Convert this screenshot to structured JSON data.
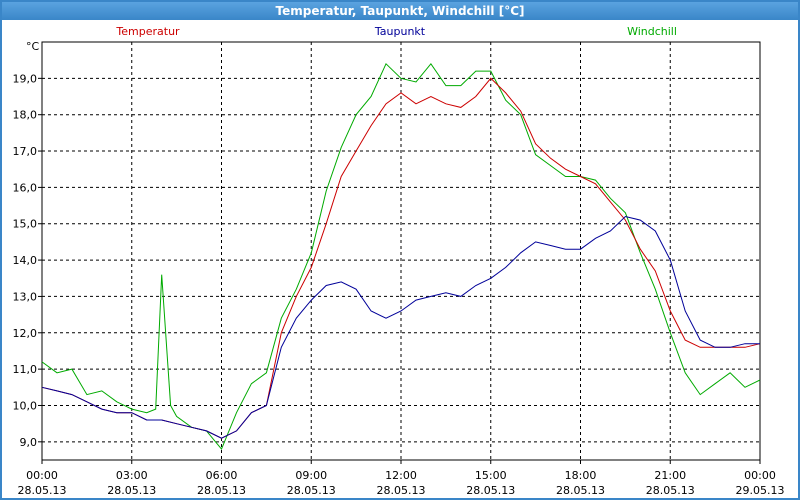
{
  "window": {
    "title": "Temperatur, Taupunkt, Windchill [°C]"
  },
  "chart_data": {
    "type": "line",
    "unit_label": "°C",
    "ylim": [
      8.5,
      20.0
    ],
    "yticks": [
      9.0,
      10.0,
      11.0,
      12.0,
      13.0,
      14.0,
      15.0,
      16.0,
      17.0,
      18.0,
      19.0
    ],
    "ytick_labels": [
      "9,0",
      "10,0",
      "11,0",
      "12,0",
      "13,0",
      "14,0",
      "15,0",
      "16,0",
      "17,0",
      "18,0",
      "19,0"
    ],
    "xlim": [
      0,
      24
    ],
    "xticks": [
      0,
      3,
      6,
      9,
      12,
      15,
      18,
      21,
      24
    ],
    "xtick_time": [
      "00:00",
      "03:00",
      "06:00",
      "09:00",
      "12:00",
      "15:00",
      "18:00",
      "21:00",
      "00:00"
    ],
    "xtick_date": [
      "28.05.13",
      "28.05.13",
      "28.05.13",
      "28.05.13",
      "28.05.13",
      "28.05.13",
      "28.05.13",
      "28.05.13",
      "29.05.13"
    ],
    "grid": true,
    "legend_placement": "top",
    "series": [
      {
        "name": "Temperatur",
        "color": "#cc0000",
        "x": [
          0,
          0.5,
          1,
          1.5,
          2,
          2.5,
          3,
          3.5,
          4,
          4.5,
          5,
          5.5,
          6,
          6.5,
          7,
          7.5,
          8,
          8.5,
          9,
          9.5,
          10,
          10.5,
          11,
          11.5,
          12,
          12.5,
          13,
          13.5,
          14,
          14.5,
          15,
          15.5,
          16,
          16.5,
          17,
          17.5,
          18,
          18.5,
          19,
          19.5,
          20,
          20.5,
          21,
          21.5,
          22,
          22.5,
          23,
          23.5,
          24
        ],
        "values": [
          10.5,
          10.4,
          10.3,
          10.1,
          9.9,
          9.8,
          9.8,
          9.6,
          9.6,
          9.5,
          9.4,
          9.3,
          9.1,
          9.3,
          9.8,
          10.0,
          12.0,
          13.0,
          13.8,
          15.0,
          16.3,
          17.0,
          17.7,
          18.3,
          18.6,
          18.3,
          18.5,
          18.3,
          18.2,
          18.5,
          19.0,
          18.6,
          18.1,
          17.2,
          16.8,
          16.5,
          16.3,
          16.1,
          15.6,
          15.1,
          14.3,
          13.7,
          12.6,
          11.8,
          11.6,
          11.6,
          11.6,
          11.6,
          11.7
        ]
      },
      {
        "name": "Taupunkt",
        "color": "#000099",
        "x": [
          0,
          0.5,
          1,
          1.5,
          2,
          2.5,
          3,
          3.5,
          4,
          4.5,
          5,
          5.5,
          6,
          6.5,
          7,
          7.5,
          8,
          8.5,
          9,
          9.5,
          10,
          10.5,
          11,
          11.5,
          12,
          12.5,
          13,
          13.5,
          14,
          14.5,
          15,
          15.5,
          16,
          16.5,
          17,
          17.5,
          18,
          18.5,
          19,
          19.5,
          20,
          20.5,
          21,
          21.5,
          22,
          22.5,
          23,
          23.5,
          24
        ],
        "values": [
          10.5,
          10.4,
          10.3,
          10.1,
          9.9,
          9.8,
          9.8,
          9.6,
          9.6,
          9.5,
          9.4,
          9.3,
          9.1,
          9.3,
          9.8,
          10.0,
          11.6,
          12.4,
          12.9,
          13.3,
          13.4,
          13.2,
          12.6,
          12.4,
          12.6,
          12.9,
          13.0,
          13.1,
          13.0,
          13.3,
          13.5,
          13.8,
          14.2,
          14.5,
          14.4,
          14.3,
          14.3,
          14.6,
          14.8,
          15.2,
          15.1,
          14.8,
          14.0,
          12.6,
          11.8,
          11.6,
          11.6,
          11.7,
          11.7
        ]
      },
      {
        "name": "Windchill",
        "color": "#00aa00",
        "x": [
          0,
          0.5,
          1,
          1.5,
          2,
          2.5,
          3,
          3.5,
          3.8,
          4,
          4.3,
          4.5,
          5,
          5.5,
          6,
          6.5,
          7,
          7.5,
          8,
          8.5,
          9,
          9.5,
          10,
          10.5,
          11,
          11.5,
          12,
          12.5,
          13,
          13.5,
          14,
          14.5,
          15,
          15.5,
          16,
          16.5,
          17,
          17.5,
          18,
          18.5,
          19,
          19.5,
          20,
          20.5,
          21,
          21.5,
          22,
          22.5,
          23,
          23.5,
          24
        ],
        "values": [
          11.2,
          10.9,
          11.0,
          10.3,
          10.4,
          10.1,
          9.9,
          9.8,
          9.9,
          13.6,
          10.0,
          9.7,
          9.4,
          9.3,
          8.8,
          9.8,
          10.6,
          10.9,
          12.4,
          13.2,
          14.2,
          15.9,
          17.1,
          18.0,
          18.5,
          19.4,
          19.0,
          18.9,
          19.4,
          18.8,
          18.8,
          19.2,
          19.2,
          18.4,
          18.0,
          16.9,
          16.6,
          16.3,
          16.3,
          16.2,
          15.7,
          15.3,
          14.2,
          13.2,
          12.0,
          10.9,
          10.3,
          10.6,
          10.9,
          10.5,
          10.7
        ]
      }
    ]
  }
}
